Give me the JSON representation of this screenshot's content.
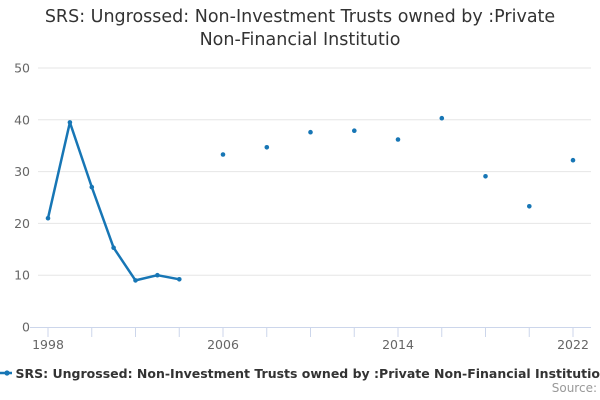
{
  "title": {
    "line1": "SRS: Ungrossed: Non-Investment Trusts owned by :Private",
    "line2": "Non-Financial Institutio"
  },
  "legend": {
    "label": "SRS: Ungrossed: Non-Investment Trusts owned by :Private Non-Financial Institutio",
    "marker": "line-dot-marker"
  },
  "credits": {
    "label": "Source:"
  },
  "colors": {
    "series": "#1776b5",
    "grid": "#e6e6e6",
    "axis_line": "#ccd6eb",
    "tick_label": "#666666",
    "title_text": "#333333",
    "legend_text": "#333333",
    "credits_text": "#999999",
    "background": "#ffffff"
  },
  "chart_data": {
    "type": "line",
    "title": "SRS: Ungrossed: Non-Investment Trusts owned by :Private Non-Financial Institutio",
    "xlabel": "",
    "ylabel": "",
    "xlim": [
      1997.5,
      2022.8
    ],
    "ylim": [
      0,
      50
    ],
    "y_ticks": [
      0,
      10,
      20,
      30,
      40,
      50
    ],
    "x_ticks": [
      1998,
      2000,
      2002,
      2004,
      2006,
      2008,
      2010,
      2012,
      2014,
      2016,
      2018,
      2020,
      2022
    ],
    "x_tick_labels": [
      "1998",
      "2006",
      "2014",
      "2022"
    ],
    "grid": "horizontal-only",
    "legend_position": "bottom-left",
    "series": [
      {
        "name": "SRS: Ungrossed: Non-Investment Trusts owned by :Private Non-Financial Institutio",
        "connect_max_year_gap": 1,
        "points": [
          [
            1998,
            21
          ],
          [
            1999,
            39.5
          ],
          [
            2000,
            27
          ],
          [
            2001,
            15.3
          ],
          [
            2002,
            9
          ],
          [
            2003,
            10
          ],
          [
            2004,
            9.2
          ],
          [
            2006,
            33.3
          ],
          [
            2008,
            34.7
          ],
          [
            2010,
            37.6
          ],
          [
            2012,
            37.9
          ],
          [
            2014,
            36.2
          ],
          [
            2016,
            40.3
          ],
          [
            2018,
            29.1
          ],
          [
            2020,
            23.3
          ],
          [
            2022,
            32.2
          ]
        ]
      }
    ]
  }
}
